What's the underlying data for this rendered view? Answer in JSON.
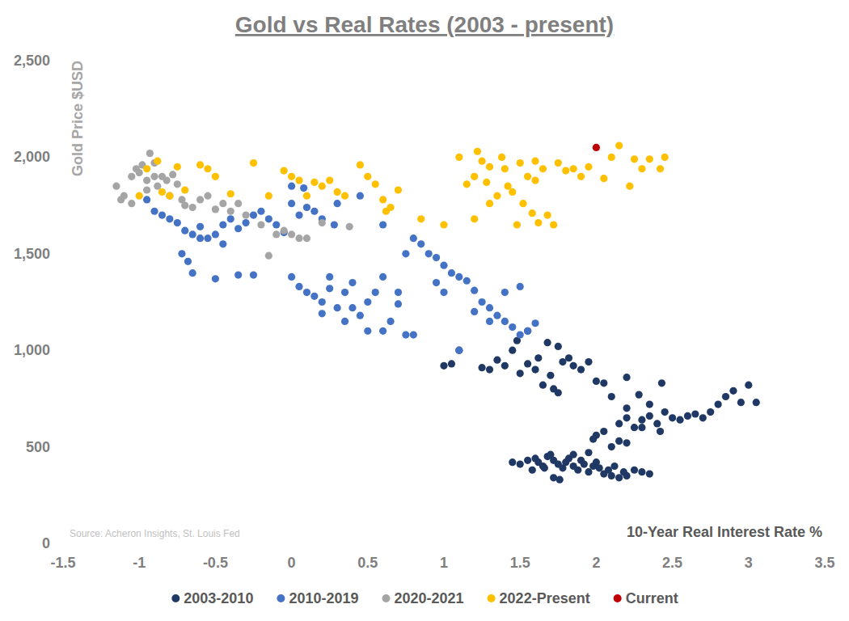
{
  "chart_data": {
    "type": "scatter",
    "title": "Gold vs Real Rates (2003 - present)",
    "y_label": "Gold Price $USD",
    "x_label": "10-Year Real Interest Rate %",
    "source": "Source: Acheron Insights, St. Louis Fed",
    "xlim": [
      -1.5,
      3.5
    ],
    "xticks": [
      -1.5,
      -1,
      -0.5,
      0,
      0.5,
      1,
      1.5,
      2,
      2.5,
      3,
      3.5
    ],
    "ylim": [
      0,
      2500
    ],
    "yticks": [
      0,
      500,
      {
        "value": 1000,
        "label": "1,000"
      },
      {
        "value": 1500,
        "label": "1,500"
      },
      {
        "value": 2000,
        "label": "2,000"
      },
      {
        "value": 2500,
        "label": "2,500"
      }
    ],
    "grid": false,
    "legend": "bottom",
    "series": [
      {
        "name": "2003-2010",
        "color": "#203864",
        "marker": "circle",
        "x": [
          1.45,
          1.5,
          1.55,
          1.6,
          1.62,
          1.65,
          1.68,
          1.7,
          1.72,
          1.75,
          1.78,
          1.8,
          1.82,
          1.85,
          1.88,
          1.9,
          1.92,
          1.95,
          1.98,
          2.0,
          2.02,
          2.05,
          2.08,
          2.1,
          2.12,
          2.15,
          2.18,
          2.2,
          2.25,
          2.3,
          2.35,
          1.72,
          1.76,
          1.58,
          1.66,
          1.85,
          1.95,
          2.0,
          1.98,
          2.05,
          2.1,
          2.15,
          2.2,
          2.15,
          2.2,
          2.25,
          2.3,
          2.35,
          2.4,
          2.45,
          2.5,
          2.55,
          2.6,
          2.65,
          2.7,
          2.75,
          2.8,
          2.85,
          2.9,
          2.95,
          3.05,
          3.0,
          2.3,
          2.42,
          2.35,
          2.28,
          2.43,
          2.2,
          2.1,
          2.05,
          2.0,
          1.95,
          2.2,
          1.0,
          1.05,
          1.1,
          1.25,
          1.3,
          1.35,
          1.4,
          1.45,
          1.5,
          1.55,
          1.6,
          1.62,
          1.65,
          1.7,
          1.72,
          1.75,
          1.78,
          1.82,
          1.85,
          1.9,
          1.75,
          1.68,
          1.55,
          1.48
        ],
        "values": [
          420,
          410,
          430,
          440,
          420,
          400,
          450,
          460,
          430,
          410,
          390,
          420,
          440,
          400,
          380,
          430,
          410,
          370,
          400,
          420,
          390,
          360,
          380,
          350,
          400,
          340,
          370,
          350,
          380,
          370,
          360,
          340,
          330,
          380,
          390,
          460,
          470,
          560,
          540,
          580,
          500,
          530,
          520,
          620,
          650,
          600,
          640,
          660,
          620,
          680,
          650,
          640,
          660,
          670,
          650,
          680,
          720,
          760,
          790,
          730,
          730,
          820,
          600,
          580,
          720,
          770,
          830,
          700,
          760,
          830,
          840,
          940,
          860,
          920,
          930,
          1000,
          910,
          900,
          950,
          920,
          1000,
          880,
          930,
          900,
          960,
          820,
          870,
          800,
          780,
          940,
          960,
          920,
          900,
          1020,
          1040,
          1100,
          1050
        ]
      },
      {
        "name": "2010-2019",
        "color": "#4472c4",
        "marker": "circle",
        "x": [
          -0.95,
          -0.9,
          -0.85,
          -0.8,
          -0.75,
          -0.7,
          -0.65,
          -0.6,
          -0.55,
          -0.5,
          -0.45,
          -0.4,
          -0.35,
          -0.3,
          -0.25,
          -0.2,
          -0.15,
          -0.1,
          -0.05,
          0.0,
          0.05,
          -0.72,
          -0.68,
          -0.65,
          -0.5,
          -0.35,
          -0.25,
          -0.45,
          -0.6,
          0.1,
          0.15,
          0.2,
          0.28,
          0.3,
          0.08,
          0.0,
          0.45,
          0.0,
          0.05,
          0.1,
          0.15,
          0.2,
          0.25,
          0.3,
          0.35,
          0.4,
          0.45,
          0.5,
          0.55,
          0.6,
          0.65,
          0.7,
          0.75,
          0.8,
          0.5,
          0.35,
          0.2,
          0.6,
          0.4,
          0.25,
          0.7,
          0.6,
          0.8,
          0.85,
          0.9,
          0.95,
          1.0,
          1.05,
          1.1,
          1.15,
          1.2,
          1.25,
          1.3,
          1.35,
          1.4,
          1.45,
          1.5,
          1.55,
          1.6,
          1.3,
          1.2,
          1.0,
          0.95,
          1.4,
          1.5,
          0.75,
          1.1
        ],
        "values": [
          1780,
          1720,
          1700,
          1680,
          1660,
          1620,
          1600,
          1640,
          1580,
          1600,
          1650,
          1680,
          1630,
          1660,
          1700,
          1720,
          1680,
          1650,
          1610,
          1760,
          1700,
          1500,
          1460,
          1400,
          1370,
          1390,
          1390,
          1550,
          1580,
          1740,
          1720,
          1680,
          1650,
          1760,
          1840,
          1850,
          1800,
          1380,
          1330,
          1300,
          1280,
          1250,
          1320,
          1220,
          1300,
          1350,
          1180,
          1250,
          1300,
          1380,
          1150,
          1240,
          1080,
          1080,
          1100,
          1150,
          1190,
          1100,
          1220,
          1380,
          1300,
          1650,
          1580,
          1550,
          1500,
          1480,
          1440,
          1400,
          1380,
          1360,
          1310,
          1250,
          1220,
          1180,
          1150,
          1120,
          1080,
          1100,
          1140,
          1150,
          1200,
          1300,
          1350,
          1300,
          1330,
          1500,
          1000
        ]
      },
      {
        "name": "2020-2021",
        "color": "#a5a5a5",
        "marker": "circle",
        "x": [
          -1.15,
          -1.12,
          -1.1,
          -1.05,
          -1.02,
          -1.0,
          -0.98,
          -0.95,
          -0.93,
          -0.9,
          -0.88,
          -0.85,
          -0.82,
          -0.8,
          -0.78,
          -0.75,
          -0.72,
          -0.7,
          -0.65,
          -0.6,
          -0.55,
          -0.5,
          -0.45,
          -0.4,
          -0.35,
          -0.3,
          -0.2,
          -0.15,
          -0.1,
          -0.05,
          0.0,
          0.05,
          0.1,
          0.2,
          0.38,
          -0.95,
          -1.05,
          -0.9
        ],
        "values": [
          1850,
          1780,
          1800,
          1900,
          1940,
          1920,
          1960,
          1880,
          2020,
          1970,
          1850,
          1900,
          1880,
          1800,
          1910,
          1860,
          1780,
          1750,
          1740,
          1780,
          1800,
          1730,
          1760,
          1720,
          1760,
          1700,
          1650,
          1490,
          1600,
          1620,
          1600,
          1580,
          1580,
          1660,
          1640,
          1830,
          1760,
          1900
        ]
      },
      {
        "name": "2022-Present",
        "color": "#ffc000",
        "marker": "circle",
        "x": [
          -1.0,
          -0.95,
          -0.88,
          -0.85,
          -0.8,
          -0.75,
          -0.7,
          -0.6,
          -0.55,
          -0.5,
          -0.4,
          -0.25,
          -0.15,
          -0.05,
          0.0,
          0.05,
          0.1,
          0.15,
          0.2,
          0.25,
          0.3,
          0.35,
          0.45,
          0.5,
          0.55,
          0.6,
          0.62,
          0.65,
          0.7,
          0.85,
          1.0,
          1.1,
          1.2,
          1.22,
          1.25,
          1.28,
          1.3,
          1.35,
          1.38,
          1.42,
          1.45,
          1.5,
          1.52,
          1.55,
          1.58,
          1.6,
          1.62,
          1.65,
          1.68,
          1.72,
          1.75,
          1.8,
          1.85,
          1.9,
          1.95,
          2.05,
          2.1,
          2.15,
          2.22,
          2.25,
          2.3,
          2.35,
          2.42,
          2.45,
          1.15,
          1.3,
          1.48,
          1.6,
          1.2,
          1.4
        ],
        "values": [
          1800,
          1940,
          1980,
          1820,
          1800,
          1950,
          1830,
          1960,
          1940,
          1900,
          1810,
          1970,
          1800,
          1930,
          1900,
          1880,
          1800,
          1870,
          1850,
          1880,
          1820,
          1800,
          1960,
          1900,
          1860,
          1780,
          1720,
          1740,
          1830,
          1680,
          1650,
          2000,
          1680,
          2030,
          1980,
          1870,
          1950,
          1800,
          2000,
          1850,
          1820,
          1970,
          1760,
          1900,
          1710,
          1980,
          1660,
          1940,
          1700,
          1650,
          1970,
          1930,
          1940,
          1900,
          1950,
          1890,
          2000,
          2060,
          1850,
          1990,
          1940,
          1990,
          1940,
          2000,
          1860,
          1760,
          1650,
          1880,
          1900,
          1940
        ]
      },
      {
        "name": "Current",
        "color": "#c00000",
        "marker": "circle",
        "x": [
          2.0
        ],
        "values": [
          2050
        ]
      }
    ]
  }
}
